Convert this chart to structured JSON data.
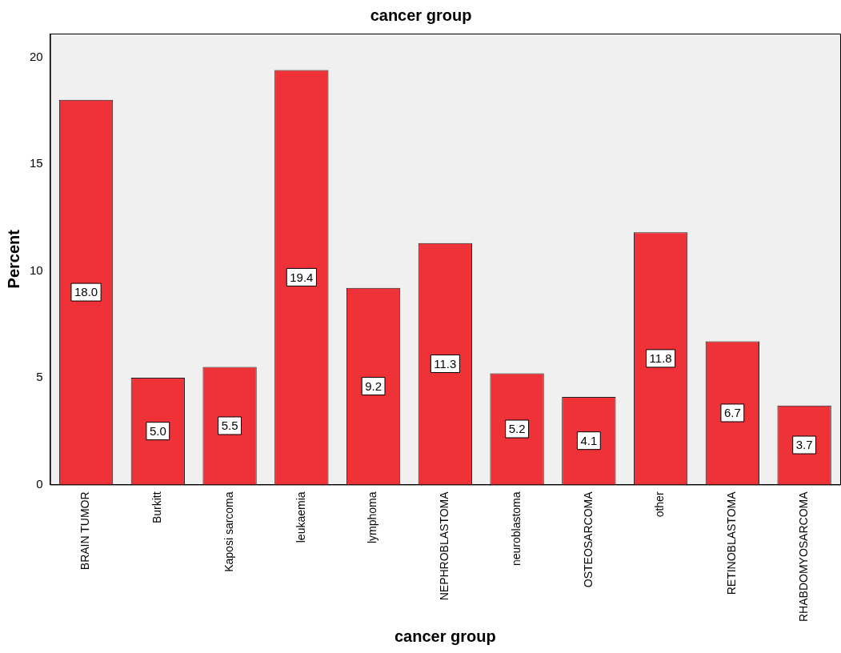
{
  "chart_data": {
    "type": "bar",
    "title": "cancer group",
    "xlabel": "cancer group",
    "ylabel": "Percent",
    "categories": [
      "BRAIN TUMOR",
      "Burkitt",
      "Kaposi sarcoma",
      "leukaemia",
      "lymphoma",
      "NEPHROBLASTOMA",
      "neuroblastoma",
      "OSTEOSARCOMA",
      "other",
      "RETINOBLASTOMA",
      "RHABDOMYOSARCOMA"
    ],
    "values": [
      18.0,
      5.0,
      5.5,
      19.4,
      9.2,
      11.3,
      5.2,
      4.1,
      11.8,
      6.7,
      3.7
    ],
    "color": "#ee3237",
    "value_labels": [
      "18.0",
      "5.0",
      "5.5",
      "19.4",
      "9.2",
      "11.3",
      "5.2",
      "4.1",
      "11.8",
      "6.7",
      "3.7"
    ],
    "ylim": [
      0,
      21.1
    ],
    "yticks": [
      0,
      5,
      10,
      15,
      20
    ],
    "grid": false,
    "legend": false
  }
}
